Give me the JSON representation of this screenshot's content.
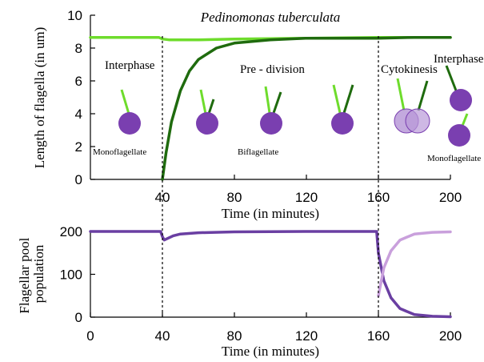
{
  "colors": {
    "flagella_old": "#6edc2c",
    "flagella_new": "#1f6b0e",
    "cell_body": "#7a3fb0",
    "cell_body_light": "#b99ad8",
    "pool_main": "#6a3fa2",
    "pool_light": "#c9a0dc"
  },
  "chart_data": [
    {
      "type": "line",
      "title": "Pedinomonas tuberculata",
      "xlabel": "Time (in minutes)",
      "ylabel": "Length of flagella (in um)",
      "xlim": [
        0,
        200
      ],
      "ylim": [
        0,
        10
      ],
      "xticks": [
        40,
        80,
        120,
        160,
        200
      ],
      "yticks": [
        0,
        2,
        4,
        6,
        8,
        10
      ],
      "grid": false,
      "phase_markers": [
        40,
        160
      ],
      "series": [
        {
          "color": "#6edc2c",
          "x": [
            0,
            38,
            40,
            44,
            50,
            60,
            80,
            120,
            160,
            200
          ],
          "y": [
            8.65,
            8.65,
            8.55,
            8.5,
            8.5,
            8.5,
            8.55,
            8.6,
            8.65,
            8.65
          ]
        },
        {
          "color": "#1f6b0e",
          "x": [
            40,
            42,
            45,
            50,
            55,
            60,
            70,
            80,
            100,
            120,
            140,
            160,
            180,
            200
          ],
          "y": [
            0,
            1.6,
            3.5,
            5.4,
            6.6,
            7.3,
            8.0,
            8.3,
            8.5,
            8.6,
            8.6,
            8.6,
            8.65,
            8.65
          ]
        }
      ],
      "annotations": {
        "phases": [
          "Interphase",
          "Pre - division",
          "Cytokinesis",
          "Interphase"
        ],
        "cell_states": [
          "Monoflagellate",
          "Biflagellate",
          "Monoflagellate"
        ]
      }
    },
    {
      "type": "line",
      "title": "",
      "xlabel": "Time (in minutes)",
      "ylabel": "Flagellar pool population",
      "xlim": [
        0,
        200
      ],
      "ylim": [
        0,
        200
      ],
      "xticks": [
        0,
        40,
        80,
        120,
        160,
        200
      ],
      "yticks": [
        0,
        100,
        200
      ],
      "grid": false,
      "phase_markers": [
        40,
        160
      ],
      "series": [
        {
          "color": "#6a3fa2",
          "x": [
            0,
            39,
            40,
            41,
            43,
            46,
            50,
            60,
            80,
            120,
            159,
            160,
            163,
            167,
            172,
            180,
            190,
            200
          ],
          "y": [
            200,
            200,
            188,
            180,
            184,
            190,
            194,
            197,
            199,
            200,
            200,
            150,
            85,
            45,
            20,
            6,
            2,
            1
          ]
        },
        {
          "color": "#c9a0dc",
          "x": [
            160,
            163,
            167,
            172,
            180,
            190,
            200
          ],
          "y": [
            50,
            115,
            155,
            180,
            194,
            198,
            199
          ]
        }
      ]
    }
  ]
}
